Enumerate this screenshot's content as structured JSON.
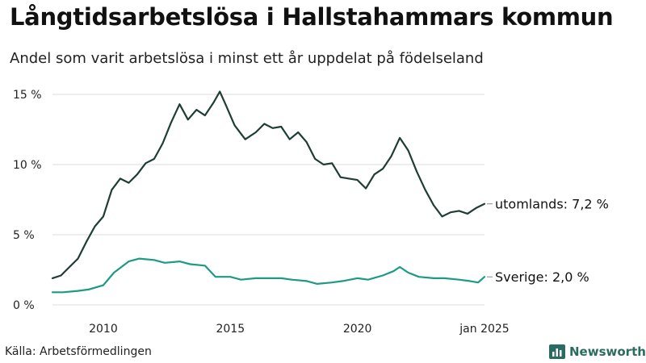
{
  "title": "Långtidsarbetslösa i Hallstahammars kommun",
  "subtitle": "Andel som varit arbetslösa i minst ett år uppdelat på födelseland",
  "source": "Källa: Arbetsförmedlingen",
  "brand": {
    "name": "Newsworthy",
    "icon": "bar-chart-logo-icon",
    "color": "#2a6b62"
  },
  "chart_data": {
    "type": "line",
    "x_range": [
      "2008-01",
      "2025-01"
    ],
    "ylim": [
      0,
      15
    ],
    "grid": true,
    "y_ticks": [
      {
        "value": 0,
        "label": "0 %"
      },
      {
        "value": 5,
        "label": "5 %"
      },
      {
        "value": 10,
        "label": "10 %"
      },
      {
        "value": 15,
        "label": "15 %"
      }
    ],
    "x_ticks": [
      {
        "date": "2010-01",
        "label": "2010"
      },
      {
        "date": "2015-01",
        "label": "2015"
      },
      {
        "date": "2020-01",
        "label": "2020"
      },
      {
        "date": "2025-01",
        "label": "jan 2025"
      }
    ],
    "series": [
      {
        "name": "utomlands",
        "end_label": "utomlands: 7,2 %",
        "color": "#1e3d36",
        "points": [
          [
            "2008-01",
            1.9
          ],
          [
            "2008-05",
            2.1
          ],
          [
            "2008-09",
            2.7
          ],
          [
            "2009-01",
            3.3
          ],
          [
            "2009-05",
            4.5
          ],
          [
            "2009-09",
            5.6
          ],
          [
            "2010-01",
            6.3
          ],
          [
            "2010-05",
            8.2
          ],
          [
            "2010-09",
            9.0
          ],
          [
            "2011-01",
            8.7
          ],
          [
            "2011-05",
            9.3
          ],
          [
            "2011-09",
            10.1
          ],
          [
            "2012-01",
            10.4
          ],
          [
            "2012-05",
            11.5
          ],
          [
            "2012-09",
            13.0
          ],
          [
            "2013-01",
            14.3
          ],
          [
            "2013-05",
            13.2
          ],
          [
            "2013-09",
            13.9
          ],
          [
            "2014-01",
            13.5
          ],
          [
            "2014-05",
            14.4
          ],
          [
            "2014-08",
            15.2
          ],
          [
            "2014-11",
            14.2
          ],
          [
            "2015-03",
            12.8
          ],
          [
            "2015-08",
            11.8
          ],
          [
            "2016-01",
            12.3
          ],
          [
            "2016-05",
            12.9
          ],
          [
            "2016-09",
            12.6
          ],
          [
            "2017-01",
            12.7
          ],
          [
            "2017-05",
            11.8
          ],
          [
            "2017-09",
            12.3
          ],
          [
            "2018-01",
            11.6
          ],
          [
            "2018-05",
            10.4
          ],
          [
            "2018-09",
            10.0
          ],
          [
            "2019-01",
            10.1
          ],
          [
            "2019-05",
            9.1
          ],
          [
            "2019-09",
            9.0
          ],
          [
            "2020-01",
            8.9
          ],
          [
            "2020-05",
            8.3
          ],
          [
            "2020-09",
            9.3
          ],
          [
            "2021-01",
            9.7
          ],
          [
            "2021-05",
            10.6
          ],
          [
            "2021-09",
            11.9
          ],
          [
            "2022-01",
            11.0
          ],
          [
            "2022-05",
            9.5
          ],
          [
            "2022-09",
            8.2
          ],
          [
            "2023-01",
            7.1
          ],
          [
            "2023-05",
            6.3
          ],
          [
            "2023-09",
            6.6
          ],
          [
            "2024-01",
            6.7
          ],
          [
            "2024-05",
            6.5
          ],
          [
            "2024-09",
            6.9
          ],
          [
            "2025-01",
            7.2
          ]
        ]
      },
      {
        "name": "Sverige",
        "end_label": "Sverige: 2,0 %",
        "color": "#1c9a86",
        "points": [
          [
            "2008-01",
            0.9
          ],
          [
            "2008-06",
            0.9
          ],
          [
            "2009-01",
            1.0
          ],
          [
            "2009-06",
            1.1
          ],
          [
            "2010-01",
            1.4
          ],
          [
            "2010-06",
            2.3
          ],
          [
            "2011-01",
            3.1
          ],
          [
            "2011-06",
            3.3
          ],
          [
            "2012-01",
            3.2
          ],
          [
            "2012-06",
            3.0
          ],
          [
            "2013-01",
            3.1
          ],
          [
            "2013-06",
            2.9
          ],
          [
            "2014-01",
            2.8
          ],
          [
            "2014-06",
            2.0
          ],
          [
            "2015-01",
            2.0
          ],
          [
            "2015-06",
            1.8
          ],
          [
            "2016-01",
            1.9
          ],
          [
            "2016-06",
            1.9
          ],
          [
            "2017-01",
            1.9
          ],
          [
            "2017-06",
            1.8
          ],
          [
            "2018-01",
            1.7
          ],
          [
            "2018-06",
            1.5
          ],
          [
            "2019-01",
            1.6
          ],
          [
            "2019-06",
            1.7
          ],
          [
            "2020-01",
            1.9
          ],
          [
            "2020-06",
            1.8
          ],
          [
            "2021-01",
            2.1
          ],
          [
            "2021-06",
            2.4
          ],
          [
            "2021-09",
            2.7
          ],
          [
            "2022-01",
            2.3
          ],
          [
            "2022-06",
            2.0
          ],
          [
            "2023-01",
            1.9
          ],
          [
            "2023-06",
            1.9
          ],
          [
            "2024-01",
            1.8
          ],
          [
            "2024-06",
            1.7
          ],
          [
            "2024-10",
            1.6
          ],
          [
            "2025-01",
            2.0
          ]
        ]
      }
    ]
  }
}
